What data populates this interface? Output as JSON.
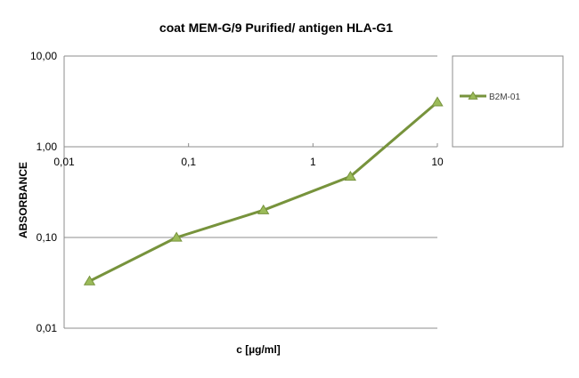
{
  "chart_data": {
    "type": "line",
    "title": "coat MEM-G/9 Purified/ antigen HLA-G1",
    "xlabel": "c [µg/ml]",
    "ylabel": "ABSORBANCE",
    "x_scale": "log",
    "y_scale": "log",
    "xlim": [
      0.01,
      10
    ],
    "ylim": [
      0.01,
      10
    ],
    "x_ticks": [
      0.01,
      0.1,
      1,
      10
    ],
    "x_tick_labels": [
      "0,01",
      "0,1",
      "1",
      "10"
    ],
    "y_ticks": [
      0.01,
      0.1,
      1,
      10
    ],
    "y_tick_labels": [
      "0,01",
      "0,10",
      "1,00",
      "10,00"
    ],
    "x_axis_position": "top",
    "grid": "horizontal",
    "legend": "right",
    "series": [
      {
        "name": "B2M-01",
        "color": "#77933c",
        "marker": "triangle",
        "x": [
          0.016,
          0.08,
          0.4,
          2,
          10
        ],
        "y": [
          0.033,
          0.1,
          0.2,
          0.47,
          3.1
        ]
      }
    ]
  }
}
